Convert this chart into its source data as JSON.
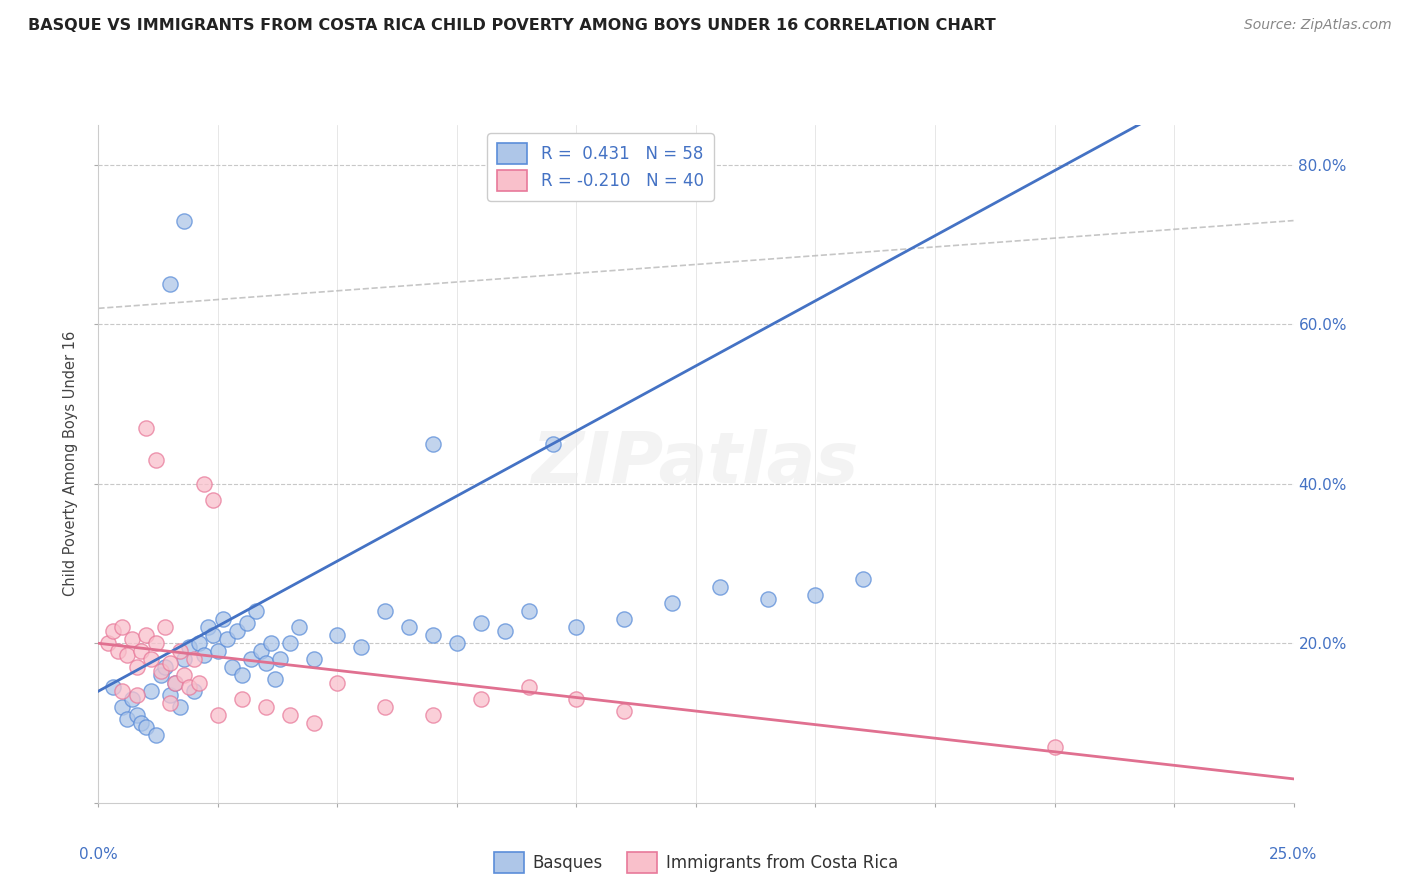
{
  "title": "BASQUE VS IMMIGRANTS FROM COSTA RICA CHILD POVERTY AMONG BOYS UNDER 16 CORRELATION CHART",
  "source": "Source: ZipAtlas.com",
  "ylabel": "Child Poverty Among Boys Under 16",
  "xlim": [
    0.0,
    25.0
  ],
  "ylim": [
    0.0,
    85.0
  ],
  "blue_R": 0.431,
  "blue_N": 58,
  "pink_R": -0.21,
  "pink_N": 40,
  "blue_fill": "#aec6e8",
  "pink_fill": "#f9c0cb",
  "blue_edge": "#5b8dd9",
  "pink_edge": "#e8799a",
  "blue_line": "#4472C4",
  "pink_line": "#E07090",
  "gray_line": "#B8B8B8",
  "blue_scatter": [
    [
      0.3,
      14.5
    ],
    [
      0.5,
      12.0
    ],
    [
      0.6,
      10.5
    ],
    [
      0.7,
      13.0
    ],
    [
      0.8,
      11.0
    ],
    [
      0.9,
      10.0
    ],
    [
      1.0,
      9.5
    ],
    [
      1.1,
      14.0
    ],
    [
      1.2,
      8.5
    ],
    [
      1.3,
      16.0
    ],
    [
      1.4,
      17.0
    ],
    [
      1.5,
      13.5
    ],
    [
      1.6,
      15.0
    ],
    [
      1.7,
      12.0
    ],
    [
      1.8,
      18.0
    ],
    [
      1.9,
      19.5
    ],
    [
      2.0,
      14.0
    ],
    [
      2.1,
      20.0
    ],
    [
      2.2,
      18.5
    ],
    [
      2.3,
      22.0
    ],
    [
      2.4,
      21.0
    ],
    [
      2.5,
      19.0
    ],
    [
      2.6,
      23.0
    ],
    [
      2.7,
      20.5
    ],
    [
      2.8,
      17.0
    ],
    [
      2.9,
      21.5
    ],
    [
      3.0,
      16.0
    ],
    [
      3.1,
      22.5
    ],
    [
      3.2,
      18.0
    ],
    [
      3.3,
      24.0
    ],
    [
      3.4,
      19.0
    ],
    [
      3.5,
      17.5
    ],
    [
      3.6,
      20.0
    ],
    [
      3.7,
      15.5
    ],
    [
      3.8,
      18.0
    ],
    [
      4.0,
      20.0
    ],
    [
      4.2,
      22.0
    ],
    [
      4.5,
      18.0
    ],
    [
      5.0,
      21.0
    ],
    [
      5.5,
      19.5
    ],
    [
      6.0,
      24.0
    ],
    [
      6.5,
      22.0
    ],
    [
      7.0,
      21.0
    ],
    [
      7.5,
      20.0
    ],
    [
      8.0,
      22.5
    ],
    [
      8.5,
      21.5
    ],
    [
      9.0,
      24.0
    ],
    [
      10.0,
      22.0
    ],
    [
      11.0,
      23.0
    ],
    [
      12.0,
      25.0
    ],
    [
      13.0,
      27.0
    ],
    [
      14.0,
      25.5
    ],
    [
      15.0,
      26.0
    ],
    [
      16.0,
      28.0
    ],
    [
      1.5,
      65.0
    ],
    [
      1.8,
      73.0
    ],
    [
      7.0,
      45.0
    ],
    [
      9.5,
      45.0
    ]
  ],
  "pink_scatter": [
    [
      0.2,
      20.0
    ],
    [
      0.3,
      21.5
    ],
    [
      0.4,
      19.0
    ],
    [
      0.5,
      22.0
    ],
    [
      0.6,
      18.5
    ],
    [
      0.7,
      20.5
    ],
    [
      0.8,
      17.0
    ],
    [
      0.9,
      19.0
    ],
    [
      1.0,
      21.0
    ],
    [
      1.1,
      18.0
    ],
    [
      1.2,
      20.0
    ],
    [
      1.3,
      16.5
    ],
    [
      1.4,
      22.0
    ],
    [
      1.5,
      17.5
    ],
    [
      1.6,
      15.0
    ],
    [
      1.7,
      19.0
    ],
    [
      1.8,
      16.0
    ],
    [
      1.9,
      14.5
    ],
    [
      2.0,
      18.0
    ],
    [
      2.1,
      15.0
    ],
    [
      2.2,
      40.0
    ],
    [
      2.4,
      38.0
    ],
    [
      1.0,
      47.0
    ],
    [
      1.2,
      43.0
    ],
    [
      3.0,
      13.0
    ],
    [
      3.5,
      12.0
    ],
    [
      4.0,
      11.0
    ],
    [
      4.5,
      10.0
    ],
    [
      5.0,
      15.0
    ],
    [
      6.0,
      12.0
    ],
    [
      7.0,
      11.0
    ],
    [
      8.0,
      13.0
    ],
    [
      9.0,
      14.5
    ],
    [
      10.0,
      13.0
    ],
    [
      11.0,
      11.5
    ],
    [
      20.0,
      7.0
    ],
    [
      0.5,
      14.0
    ],
    [
      0.8,
      13.5
    ],
    [
      1.5,
      12.5
    ],
    [
      2.5,
      11.0
    ]
  ],
  "watermark": "ZIPatlas",
  "legend_label1": "Basques",
  "legend_label2": "Immigrants from Costa Rica"
}
